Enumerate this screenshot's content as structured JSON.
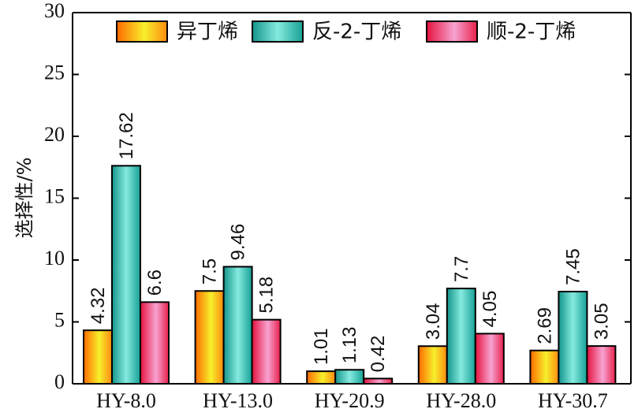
{
  "chart_data": {
    "type": "bar",
    "title": "",
    "xlabel": "",
    "ylabel": "选择性/%",
    "ylim": [
      0,
      30
    ],
    "yticks": [
      "0",
      "5",
      "10",
      "15",
      "20",
      "25",
      "30"
    ],
    "grid": false,
    "legend_position": "top",
    "categories": [
      "HY-8.0",
      "HY-13.0",
      "HY-20.9",
      "HY-28.0",
      "HY-30.7"
    ],
    "series": [
      {
        "name": "异丁烯",
        "values": [
          4.32,
          7.5,
          1.01,
          3.04,
          2.69
        ],
        "labels": [
          "4.32",
          "7.5",
          "1.01",
          "3.04",
          "2.69"
        ],
        "colors": [
          "#ff6a00",
          "#f6ef2b"
        ]
      },
      {
        "name": "反-2-丁烯",
        "values": [
          17.62,
          9.46,
          1.13,
          7.7,
          7.45
        ],
        "labels": [
          "17.62",
          "9.46",
          "1.13",
          "7.7",
          "7.45"
        ],
        "colors": [
          "#1aa39a",
          "#7fe6dc"
        ]
      },
      {
        "name": "顺-2-丁烯",
        "values": [
          6.6,
          5.18,
          0.42,
          4.05,
          3.05
        ],
        "labels": [
          "6.6",
          "5.18",
          "0.42",
          "4.05",
          "3.05"
        ],
        "colors": [
          "#e8143f",
          "#f7a0d0"
        ]
      }
    ]
  }
}
